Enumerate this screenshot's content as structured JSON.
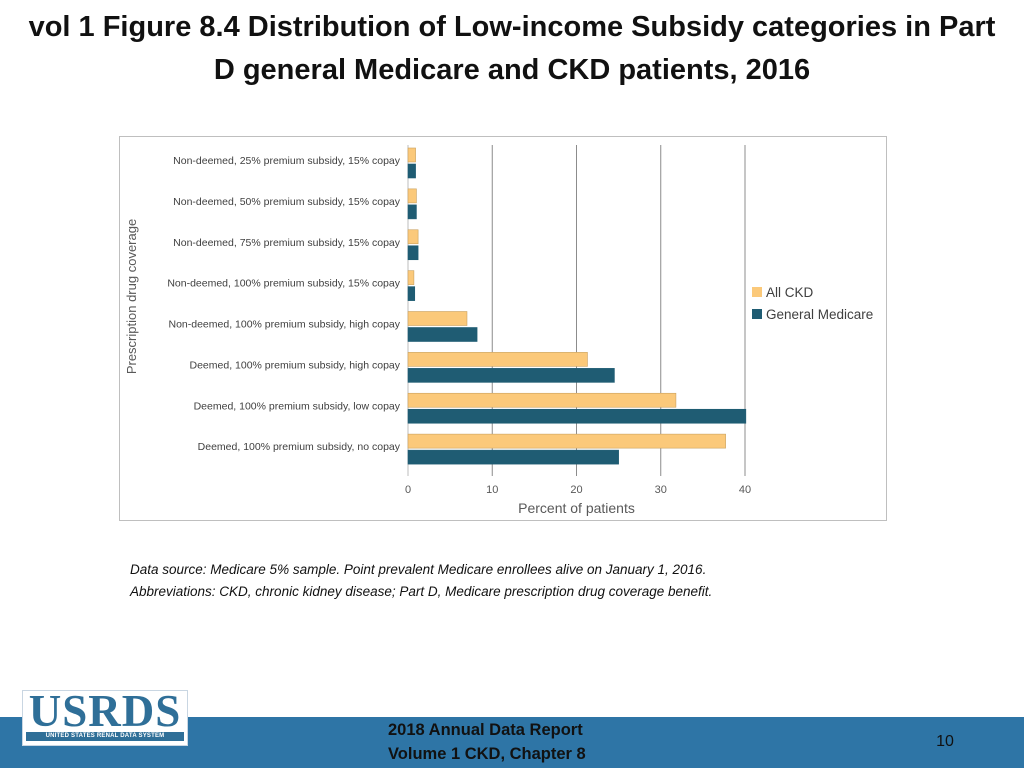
{
  "slide": {
    "title": "vol 1 Figure 8.4 Distribution of Low-income Subsidy categories in Part D general Medicare and CKD patients, 2016",
    "notes": [
      "Data source: Medicare 5% sample. Point prevalent Medicare enrollees alive on January 1, 2016.",
      "Abbreviations: CKD, chronic kidney disease; Part D, Medicare prescription drug coverage benefit."
    ],
    "footer": {
      "logo_text": "USRDS",
      "logo_subtext": "UNITED STATES RENAL DATA SYSTEM",
      "report_line1": "2018 Annual Data Report",
      "report_line2": "Volume 1 CKD, Chapter 8",
      "page_number": "10"
    },
    "colors": {
      "all_ckd": "#fbc97a",
      "general_medicare": "#1f5c73",
      "footer_bar": "#2e75a6"
    }
  },
  "chart_data": {
    "type": "bar",
    "orientation": "horizontal",
    "categories": [
      "Non-deemed, 25% premium subsidy, 15% copay",
      "Non-deemed, 50% premium subsidy, 15% copay",
      "Non-deemed, 75% premium subsidy, 15% copay",
      "Non-deemed, 100% premium subsidy, 15% copay",
      "Non-deemed, 100% premium subsidy, high copay",
      "Deemed, 100% premium subsidy, high copay",
      "Deemed, 100% premium subsidy, low copay",
      "Deemed, 100% premium subsidy, no copay"
    ],
    "series": [
      {
        "name": "All CKD",
        "color": "#fbc97a",
        "values": [
          0.9,
          1.0,
          1.2,
          0.7,
          7.0,
          21.3,
          31.8,
          37.7
        ]
      },
      {
        "name": "General Medicare",
        "color": "#1f5c73",
        "values": [
          0.9,
          1.0,
          1.2,
          0.8,
          8.2,
          24.5,
          40.1,
          25.0
        ]
      }
    ],
    "xlabel": "Percent of patients",
    "ylabel": "Prescription drug coverage",
    "xlim": [
      0,
      40
    ],
    "xticks": [
      "0",
      "10",
      "20",
      "30",
      "40"
    ],
    "grid": "vertical",
    "legend": "right"
  }
}
